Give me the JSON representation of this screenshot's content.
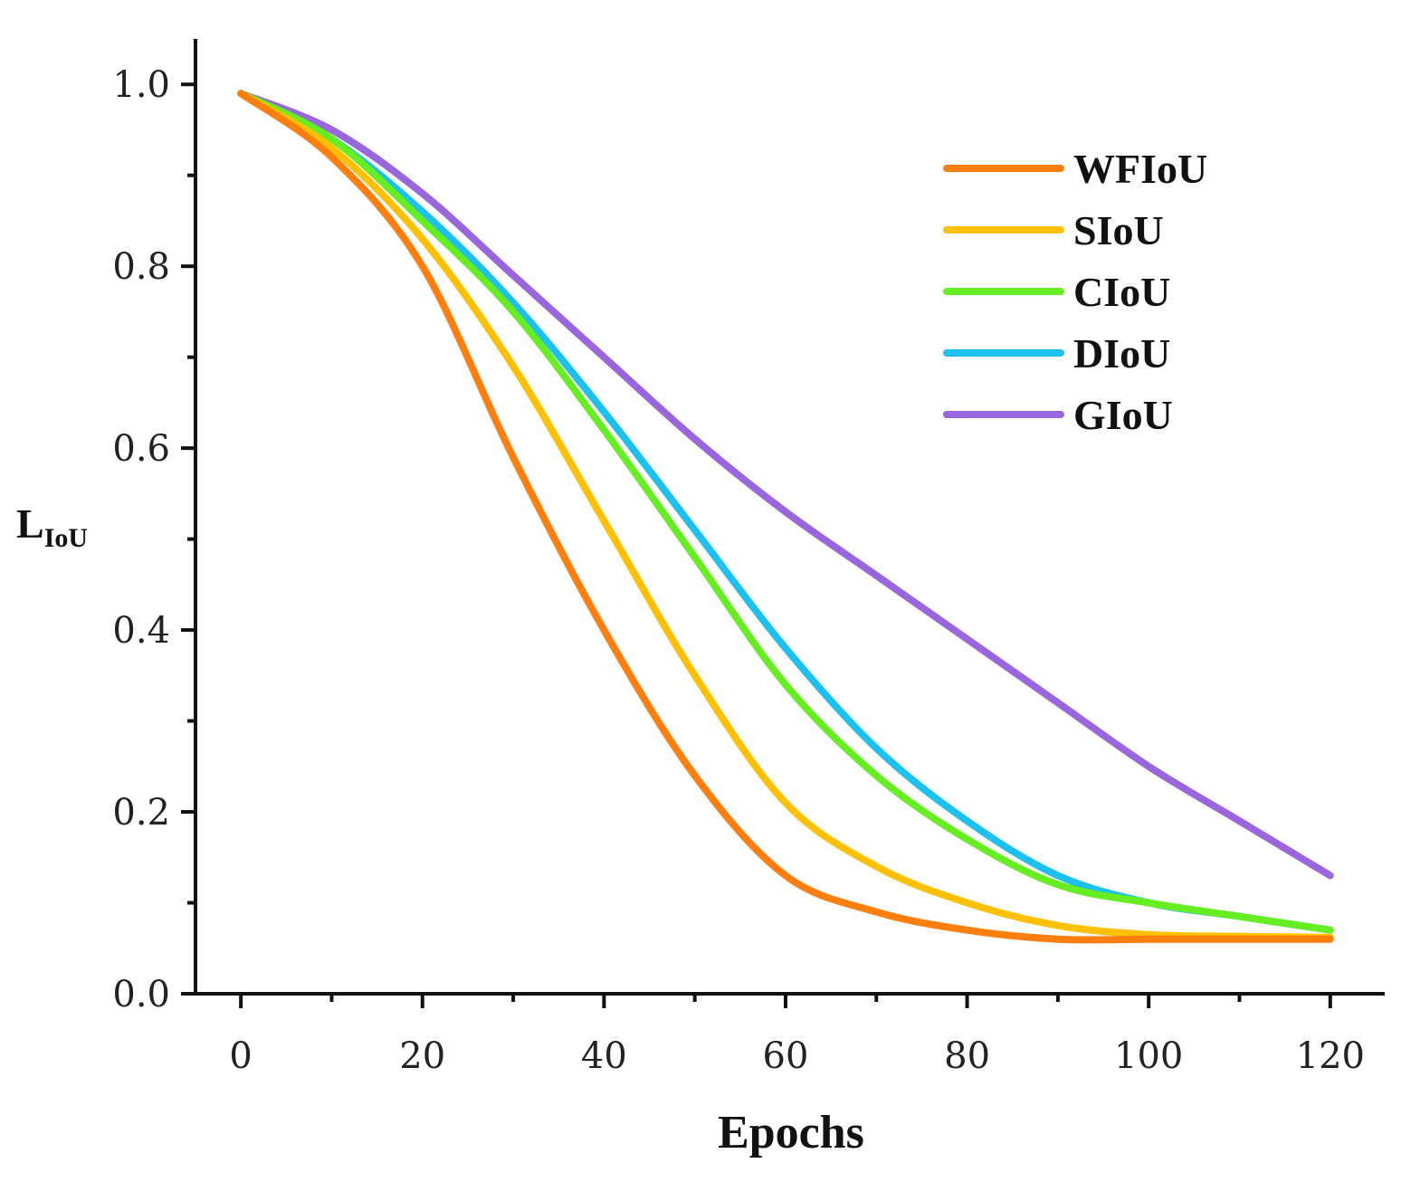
{
  "chart_data": {
    "type": "line",
    "title": "",
    "xlabel": "Epochs",
    "ylabel": "L",
    "ylabel_subscript": "IoU",
    "xlim": [
      -5,
      126
    ],
    "ylim": [
      0.0,
      1.05
    ],
    "xticks": [
      0,
      20,
      40,
      60,
      80,
      100,
      120
    ],
    "xtick_labels": [
      "0",
      "20",
      "40",
      "60",
      "80",
      "100",
      "120"
    ],
    "yticks": [
      0.0,
      0.2,
      0.4,
      0.6,
      0.8,
      1.0
    ],
    "ytick_labels": [
      "0.0",
      "0.2",
      "0.4",
      "0.6",
      "0.8",
      "1.0"
    ],
    "grid": false,
    "legend_position": "top-right",
    "x": [
      0,
      10,
      20,
      30,
      40,
      50,
      60,
      70,
      80,
      90,
      100,
      110,
      120
    ],
    "series": [
      {
        "name": "WFIoU",
        "color": "#ff7f0e",
        "values": [
          0.99,
          0.92,
          0.8,
          0.59,
          0.4,
          0.24,
          0.13,
          0.09,
          0.07,
          0.06,
          0.06,
          0.06,
          0.06
        ]
      },
      {
        "name": "SIoU",
        "color": "#ffc000",
        "values": [
          0.99,
          0.93,
          0.83,
          0.69,
          0.52,
          0.35,
          0.21,
          0.14,
          0.1,
          0.075,
          0.065,
          0.063,
          0.062
        ]
      },
      {
        "name": "CIoU",
        "color": "#66ee22",
        "values": [
          0.99,
          0.94,
          0.85,
          0.75,
          0.62,
          0.48,
          0.34,
          0.24,
          0.17,
          0.12,
          0.1,
          0.085,
          0.07
        ]
      },
      {
        "name": "DIoU",
        "color": "#1ec0ee",
        "values": [
          0.99,
          0.94,
          0.86,
          0.76,
          0.64,
          0.51,
          0.38,
          0.27,
          0.19,
          0.13,
          0.1,
          0.085,
          0.07
        ]
      },
      {
        "name": "GIoU",
        "color": "#9966dd",
        "values": [
          0.99,
          0.95,
          0.88,
          0.79,
          0.7,
          0.61,
          0.53,
          0.46,
          0.39,
          0.32,
          0.25,
          0.19,
          0.13
        ]
      }
    ]
  }
}
